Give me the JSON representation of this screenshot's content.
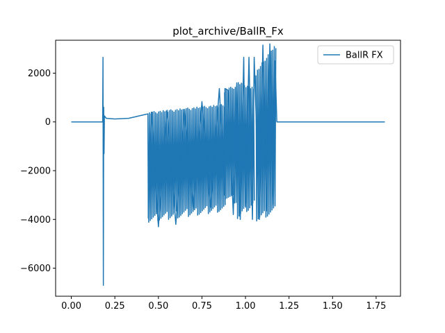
{
  "chart_data": {
    "type": "line",
    "title": "plot_archive/BallR_Fx",
    "xlabel": "",
    "ylabel": "",
    "xlim": [
      -0.09,
      1.89
    ],
    "ylim": [
      -7150,
      3350
    ],
    "xticks": [
      0.0,
      0.25,
      0.5,
      0.75,
      1.0,
      1.25,
      1.5,
      1.75
    ],
    "xtick_labels": [
      "0.00",
      "0.25",
      "0.50",
      "0.75",
      "1.00",
      "1.25",
      "1.50",
      "1.75"
    ],
    "yticks": [
      -6000,
      -4000,
      -2000,
      0,
      2000
    ],
    "ytick_labels": [
      "−6000",
      "−4000",
      "−2000",
      "0",
      "2000"
    ],
    "grid": false,
    "legend": {
      "position": "top-right",
      "entries": [
        "BallR FX"
      ]
    },
    "series": [
      {
        "name": "BallR FX",
        "color": "#1f77b4",
        "x": [
          0.0,
          0.18,
          0.182,
          0.184,
          0.186,
          0.188,
          0.19,
          0.2,
          0.25,
          0.33,
          0.44,
          0.442,
          0.46,
          0.5,
          0.55,
          0.6,
          0.65,
          0.7,
          0.75,
          0.8,
          0.85,
          0.88,
          0.882,
          0.9,
          0.93,
          0.95,
          0.97,
          0.99,
          1.0,
          1.02,
          1.04,
          1.05,
          1.08,
          1.1,
          1.12,
          1.14,
          1.16,
          1.17,
          1.18,
          1.25,
          1.5,
          1.8
        ],
        "y": [
          0,
          0,
          2650,
          -6700,
          600,
          -1300,
          250,
          150,
          120,
          150,
          330,
          -3950,
          400,
          -4300,
          480,
          -4200,
          520,
          -3600,
          830,
          -3500,
          1370,
          -3000,
          1370,
          1300,
          -3800,
          1600,
          -4000,
          2650,
          -3500,
          2650,
          -4000,
          2650,
          -4000,
          3150,
          -3650,
          3200,
          -3400,
          2500,
          0,
          0,
          0,
          0
        ]
      }
    ],
    "dense_bands": [
      {
        "x_start": 0.44,
        "x_end": 0.88,
        "y_top_start": 330,
        "y_top_end": 650,
        "y_bottom_start": -3950,
        "y_bottom_end": -3500
      },
      {
        "x_start": 0.88,
        "x_end": 0.95,
        "y_top_start": 1300,
        "y_top_end": 1400,
        "y_bottom_start": -3000,
        "y_bottom_end": -3200
      },
      {
        "x_start": 0.95,
        "x_end": 1.05,
        "y_top_start": 1600,
        "y_top_end": 1300,
        "y_bottom_start": -3800,
        "y_bottom_end": -3300
      },
      {
        "x_start": 1.06,
        "x_end": 1.17,
        "y_top_start": 2000,
        "y_top_end": 3100,
        "y_bottom_start": -3900,
        "y_bottom_end": -3600
      }
    ]
  }
}
